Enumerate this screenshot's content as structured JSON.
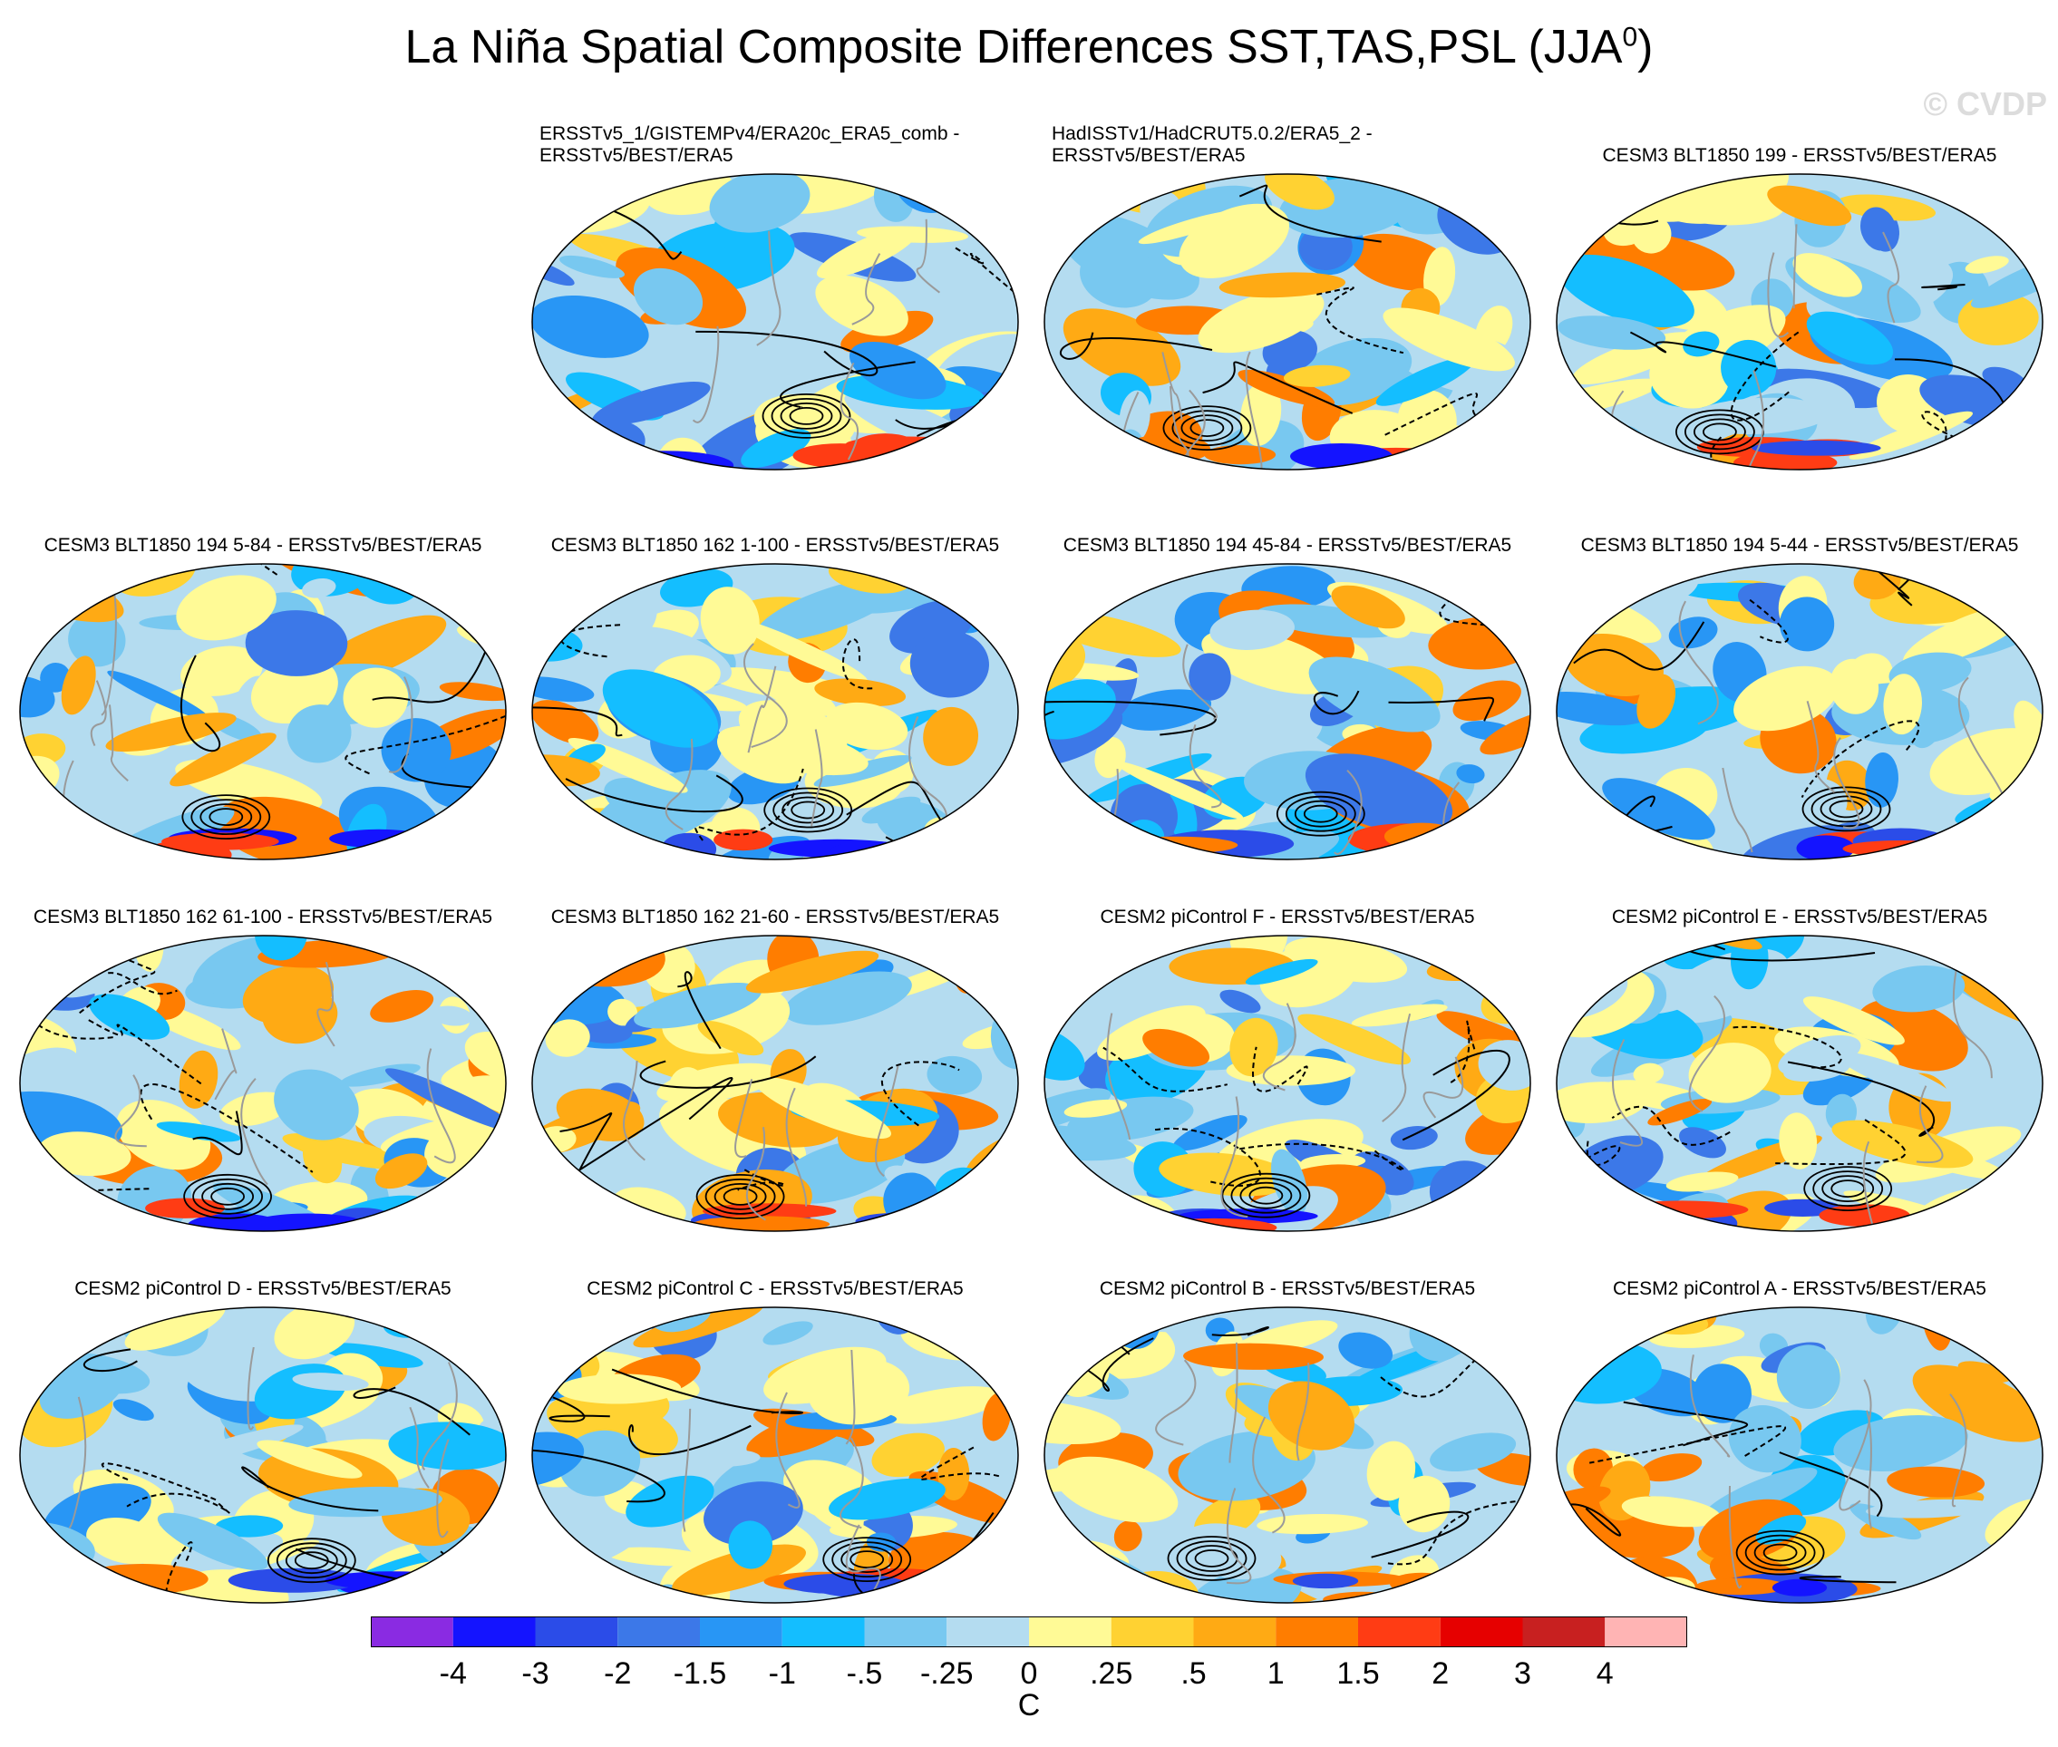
{
  "figure": {
    "title": "La Niña Spatial Composite Differences SST,TAS,PSL (JJA",
    "title_superscript": "0",
    "title_close": ")",
    "watermark": "© CVDP"
  },
  "panels": [
    {
      "title": "ERSSTv5_1/GISTEMPv4/ERA20c_ERA5_comb -\nERSSTv5/BEST/ERA5",
      "style": "left2",
      "seed": 11
    },
    {
      "title": "HadISSTv1/HadCRUT5.0.2/ERA5_2 -\nERSSTv5/BEST/ERA5",
      "style": "left2",
      "seed": 23
    },
    {
      "title": "CESM3 BLT1850 199 - ERSSTv5/BEST/ERA5",
      "style": "center",
      "seed": 37
    },
    {
      "title": "CESM3 BLT1850 194 5-84 - ERSSTv5/BEST/ERA5",
      "style": "center",
      "seed": 41
    },
    {
      "title": "CESM3 BLT1850 162 1-100 - ERSSTv5/BEST/ERA5",
      "style": "center",
      "seed": 53
    },
    {
      "title": "CESM3 BLT1850 194 45-84 - ERSSTv5/BEST/ERA5",
      "style": "center",
      "seed": 67
    },
    {
      "title": "CESM3 BLT1850 194 5-44 - ERSSTv5/BEST/ERA5",
      "style": "center",
      "seed": 71
    },
    {
      "title": "CESM3 BLT1850 162 61-100 - ERSSTv5/BEST/ERA5",
      "style": "center",
      "seed": 83
    },
    {
      "title": "CESM3 BLT1850 162 21-60 - ERSSTv5/BEST/ERA5",
      "style": "center",
      "seed": 97
    },
    {
      "title": "CESM2 piControl F - ERSSTv5/BEST/ERA5",
      "style": "center",
      "seed": 101
    },
    {
      "title": "CESM2 piControl E - ERSSTv5/BEST/ERA5",
      "style": "center",
      "seed": 113
    },
    {
      "title": "CESM2 piControl D - ERSSTv5/BEST/ERA5",
      "style": "center",
      "seed": 127
    },
    {
      "title": "CESM2 piControl C - ERSSTv5/BEST/ERA5",
      "style": "center",
      "seed": 131
    },
    {
      "title": "CESM2 piControl B - ERSSTv5/BEST/ERA5",
      "style": "center",
      "seed": 149
    },
    {
      "title": "CESM2 piControl A - ERSSTv5/BEST/ERA5",
      "style": "center",
      "seed": 157
    }
  ],
  "colorbar": {
    "colors": [
      "#8a2be2",
      "#1414ff",
      "#2b4ce8",
      "#3c78e8",
      "#2896f5",
      "#14beff",
      "#78c8f0",
      "#b4dcf0",
      "#fffa96",
      "#ffd232",
      "#ffaa14",
      "#ff7d00",
      "#ff3c14",
      "#e60000",
      "#c82020",
      "#ffb4b4"
    ],
    "labels": [
      "-4",
      "-3",
      "-2",
      "-1.5",
      "-1",
      "-.5",
      "-.25",
      "0",
      ".25",
      ".5",
      "1",
      "1.5",
      "2",
      "3",
      "4"
    ],
    "unit": "C"
  }
}
